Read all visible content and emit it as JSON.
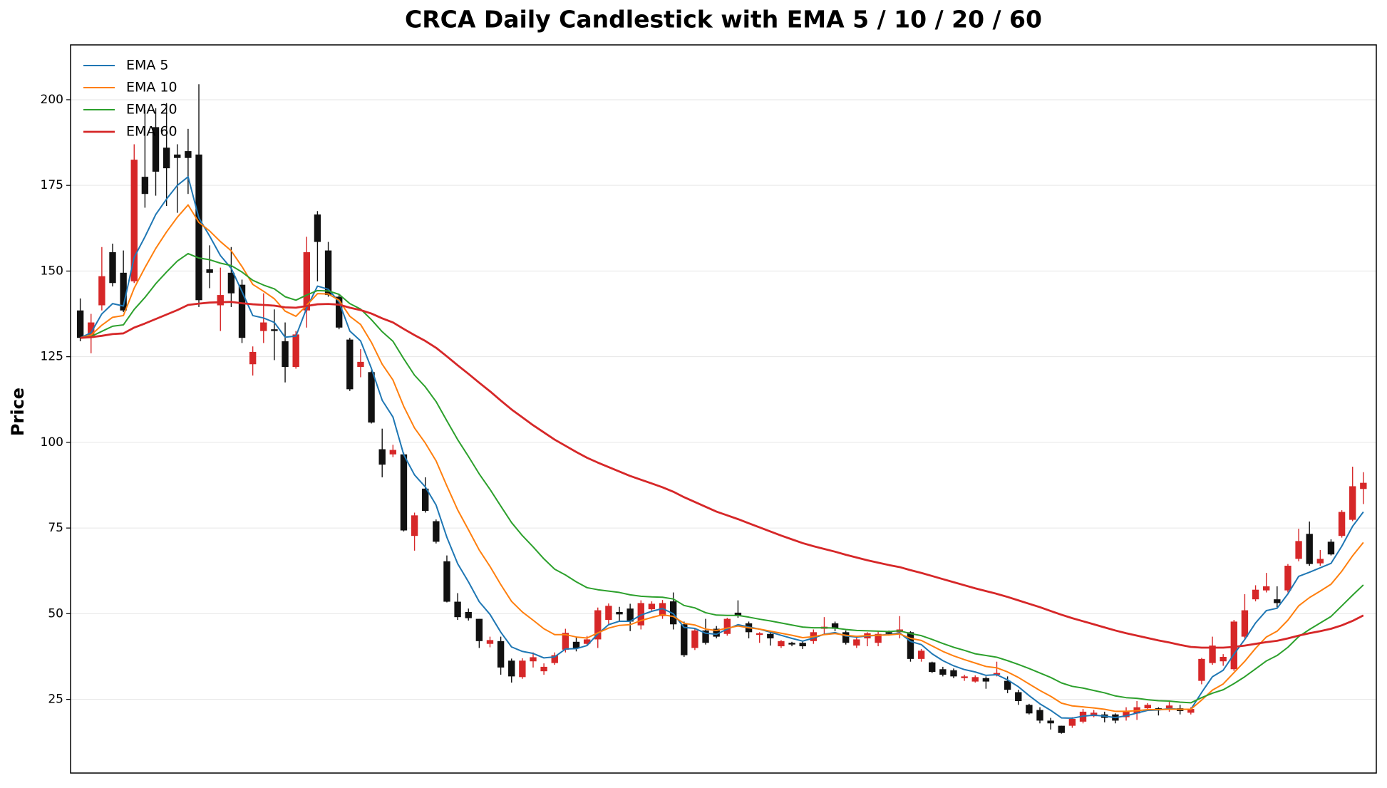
{
  "chart_data": {
    "type": "candlestick",
    "title": "CRCA Daily Candlestick with EMA 5 / 10 / 20 / 60",
    "ylabel": "Price",
    "open": [
      138.5,
      130.5,
      140,
      155.5,
      149.5,
      147,
      177.5,
      192,
      186,
      184,
      185,
      184,
      150.5,
      140,
      149.5,
      146,
      122.8,
      132.5,
      133,
      129.5,
      122,
      138.5,
      166.5,
      156,
      142.5,
      130,
      122,
      120.5,
      98,
      96.5,
      96.5,
      72.7,
      86.5,
      77,
      65.3,
      53.5,
      50.5,
      48.5,
      41.2,
      42,
      36.3,
      31.5,
      36.1,
      33.2,
      35.6,
      39.5,
      41.8,
      41.2,
      42.5,
      48.2,
      50.5,
      51.5,
      46.6,
      51.3,
      49.3,
      53.6,
      46.9,
      40,
      45.1,
      45.6,
      44.1,
      50.3,
      47.2,
      43.8,
      44.1,
      40.5,
      41.5,
      41.5,
      42,
      45.6,
      47.2,
      44.6,
      40.7,
      42.8,
      41.5,
      44.6,
      44.6,
      44.6,
      36.8,
      35.8,
      33.8,
      33.5,
      31.2,
      30.2,
      31.2,
      32.2,
      30.4,
      27.1,
      23.4,
      21.9,
      18.8,
      17.3,
      17.3,
      18.5,
      20.1,
      20.6,
      20.6,
      19.8,
      20.9,
      22.4,
      22.4,
      22.4,
      22.4,
      21.1,
      30.4,
      35.6,
      36.1,
      33.8,
      43.3,
      54.2,
      56.8,
      54.2,
      56.8,
      66,
      73.3,
      64.7,
      71,
      72.7,
      77.4,
      86.4
    ],
    "high": [
      142,
      137.5,
      157,
      158,
      156,
      187,
      197,
      197.5,
      199,
      187,
      191.5,
      204.5,
      157.5,
      151,
      157,
      147.5,
      128,
      143.5,
      138.8,
      135,
      132.5,
      160,
      167.5,
      158.5,
      143,
      130.5,
      127.2,
      121,
      104,
      99.3,
      97,
      79.5,
      89.8,
      77.5,
      67,
      56,
      51.5,
      48.5,
      43.3,
      43.3,
      36.9,
      37,
      38.7,
      35.5,
      38.7,
      45.6,
      43.3,
      43.5,
      51.8,
      53,
      52,
      52.9,
      53.9,
      53.6,
      54,
      56.2,
      47.7,
      45.6,
      48.5,
      46.4,
      48.8,
      53.9,
      47.7,
      44.6,
      45.1,
      42.3,
      41.8,
      42,
      45.4,
      49,
      47.7,
      45.1,
      43.3,
      44.6,
      44.9,
      45.1,
      49.3,
      44.9,
      39.7,
      36,
      34.5,
      34,
      32.2,
      32,
      31.7,
      36,
      31.7,
      27.8,
      23.7,
      22.7,
      19.6,
      17.3,
      19.8,
      22.2,
      21.9,
      21.4,
      20.9,
      22.7,
      24.5,
      23.9,
      22.7,
      24.5,
      23.4,
      22.7,
      37.1,
      43.3,
      38.2,
      48.2,
      55.7,
      58.3,
      61.9,
      58,
      64.5,
      74.8,
      76.9,
      68.6,
      71.7,
      80.2,
      92.9,
      91.3
    ],
    "low": [
      129.5,
      126,
      138.5,
      145.5,
      138,
      146.5,
      168.5,
      172,
      169,
      167,
      172.5,
      139.5,
      145,
      132.5,
      139.5,
      129,
      119.5,
      129,
      124,
      117.5,
      121.5,
      133.5,
      147,
      142.5,
      133,
      115,
      119,
      105.5,
      89.8,
      95.7,
      74,
      68.4,
      79.5,
      70.5,
      53.3,
      48.2,
      48,
      40,
      40.2,
      32.2,
      29.9,
      31,
      34.3,
      32.2,
      35.1,
      38.7,
      39,
      40.7,
      40,
      47,
      48,
      44.9,
      45.4,
      50.5,
      48.5,
      45.4,
      37.4,
      39.4,
      41,
      42.8,
      43.6,
      48.8,
      42.8,
      41.5,
      40.7,
      40,
      40.5,
      39.7,
      41.2,
      43.8,
      44.9,
      41,
      40,
      40.5,
      40.5,
      43.6,
      42.8,
      36,
      36,
      32.7,
      31.7,
      31.2,
      30.4,
      29.9,
      28.1,
      31.7,
      26.8,
      23.4,
      20.6,
      18,
      16.2,
      15,
      16.7,
      18,
      19.8,
      18.3,
      18,
      18.8,
      19,
      22,
      20.3,
      21.4,
      20.6,
      20.6,
      29.4,
      35.1,
      34.8,
      33.3,
      42.8,
      53.6,
      56.2,
      51.8,
      56.2,
      65.3,
      64,
      64,
      67,
      72.2,
      77,
      82
    ],
    "close": [
      130.5,
      135,
      148.5,
      146.5,
      138.5,
      182.5,
      172.5,
      179,
      180,
      183,
      183,
      141.5,
      149.5,
      143,
      143.5,
      130.5,
      126.4,
      135,
      132.5,
      122,
      131.5,
      155.5,
      158.5,
      143,
      133.5,
      115.5,
      123.5,
      105.8,
      93.5,
      97.8,
      74.3,
      78.7,
      80,
      71,
      53.5,
      49,
      48.7,
      42,
      42.3,
      34.3,
      31.7,
      36.3,
      37.3,
      34.5,
      37.9,
      44.4,
      40,
      42.5,
      51,
      52.3,
      49.8,
      47.7,
      53.1,
      52.9,
      53.1,
      46.9,
      37.9,
      45.1,
      41.5,
      43.3,
      48.5,
      49.3,
      44.6,
      44.3,
      42.8,
      42,
      41,
      40.5,
      44.6,
      46.2,
      45.6,
      41.5,
      42.5,
      44.3,
      44.1,
      44.1,
      45.4,
      36.8,
      39.2,
      33,
      32.2,
      31.7,
      31.7,
      31.5,
      30.2,
      32.7,
      27.8,
      24.5,
      20.9,
      18.8,
      18,
      15.2,
      19.3,
      21.4,
      21.1,
      19.6,
      18.8,
      21.4,
      22.7,
      23.4,
      22,
      23.2,
      21.6,
      22.2,
      36.8,
      40.7,
      37.4,
      47.7,
      51,
      57,
      58,
      53.1,
      64,
      71.2,
      64.5,
      66,
      67.3,
      79.7,
      87.2,
      88.2
    ],
    "up_color": "#d62728",
    "down_color": "#111111",
    "series": [
      {
        "name": "EMA 5",
        "color": "#1f77b4",
        "values": [
          130.5,
          132,
          137.5,
          140.5,
          139.8,
          154,
          160,
          166.5,
          171,
          175,
          177.5,
          165.5,
          160.2,
          154.5,
          150.8,
          144,
          137,
          136.3,
          135,
          130.7,
          131,
          139.2,
          145.6,
          144.7,
          141,
          132.5,
          129.6,
          121.6,
          112.3,
          107.4,
          96.4,
          90.5,
          87,
          81.7,
          72.3,
          64.6,
          59.3,
          53.5,
          49.8,
          44.6,
          40.3,
          39,
          38.4,
          37.1,
          37.4,
          39.7,
          39.8,
          40.7,
          44.1,
          46.8,
          47.8,
          47.8,
          49.6,
          50.7,
          51.5,
          50,
          46,
          45.7,
          44.3,
          44,
          45.5,
          46.8,
          46.1,
          45.5,
          44.6,
          43.7,
          42.8,
          42,
          42.9,
          44,
          44.5,
          43.5,
          43.2,
          43.5,
          43.7,
          43.9,
          44.4,
          41.9,
          41,
          38.3,
          36.3,
          34.8,
          33.7,
          33,
          32,
          32.2,
          30.7,
          28.7,
          26.1,
          23.7,
          21.8,
          19.6,
          19.5,
          20.1,
          20.4,
          20.1,
          19.7,
          20.2,
          21,
          21.8,
          21.9,
          22.3,
          22.1,
          22.1,
          27,
          31.6,
          33.5,
          38.2,
          42.5,
          47.3,
          50.9,
          51.6,
          55.8,
          60.9,
          62.1,
          63.4,
          64.7,
          69.7,
          75.5,
          79.7
        ]
      },
      {
        "name": "EMA 10",
        "color": "#ff7f0e",
        "values": [
          130.5,
          131.3,
          134.2,
          136.5,
          137,
          145,
          151,
          156.6,
          161.4,
          165.7,
          169.3,
          164.2,
          161.7,
          158.6,
          155.9,
          151.3,
          146.1,
          144.1,
          141.9,
          138.3,
          136.8,
          140,
          143.4,
          143.3,
          141.5,
          136.8,
          134.4,
          129.2,
          122.8,
          118.2,
          110.5,
          104.2,
          99.8,
          94.6,
          87.3,
          80.3,
          74.5,
          68.6,
          63.8,
          58.5,
          53.6,
          50.5,
          48.1,
          45.6,
          43.9,
          43.9,
          43.2,
          42.9,
          44.4,
          45.8,
          46.6,
          46.8,
          48,
          48.9,
          49.7,
          49.2,
          47.2,
          46.7,
          45.5,
          45.1,
          45.8,
          46.4,
          45.9,
          45.5,
          44.9,
          44.3,
          43.7,
          43,
          43.3,
          43.9,
          44.2,
          43.7,
          43.4,
          43.6,
          43.7,
          43.8,
          44.1,
          42.8,
          42.2,
          40.6,
          39,
          37.7,
          36.6,
          35.6,
          34.6,
          34.2,
          33,
          31.4,
          29.5,
          27.6,
          25.9,
          23.9,
          23.1,
          22.8,
          22.5,
          22.1,
          21.5,
          21.5,
          21.7,
          22,
          22,
          22.1,
          22.1,
          22.1,
          24.8,
          27.7,
          29.5,
          32.8,
          36.1,
          39.9,
          43.2,
          44.9,
          48.1,
          52.3,
          54.7,
          56.6,
          58.6,
          62.4,
          66.9,
          70.8
        ]
      },
      {
        "name": "EMA 20",
        "color": "#2ca02c",
        "values": [
          130.5,
          130.9,
          132.4,
          133.9,
          134.3,
          138.8,
          142.3,
          146.3,
          149.7,
          152.9,
          155.1,
          153.8,
          153.3,
          152.3,
          151.6,
          149.7,
          147.3,
          145.9,
          144.8,
          142.5,
          141.5,
          143,
          144.3,
          144.2,
          143.2,
          140.5,
          138.9,
          135.8,
          132.3,
          129.5,
          124.4,
          119.6,
          116.2,
          111.9,
          106.3,
          100.8,
          95.9,
          90.8,
          86.3,
          81.4,
          76.6,
          72.8,
          69.5,
          66,
          63,
          61.3,
          59.3,
          57.6,
          57,
          56.6,
          56.2,
          55.5,
          55.1,
          54.9,
          54.8,
          54.3,
          52.4,
          51.7,
          50.3,
          49.6,
          49.5,
          49.5,
          49,
          48.4,
          47.9,
          47.3,
          46.7,
          46.1,
          45.9,
          45.9,
          45.8,
          45.4,
          45.1,
          45,
          44.9,
          44.8,
          45,
          44.2,
          43.6,
          42.5,
          41.3,
          40.2,
          39.3,
          38.3,
          37.8,
          37.3,
          36.3,
          35.2,
          34,
          32.7,
          31.4,
          29.8,
          28.8,
          28.3,
          27.6,
          26.9,
          26,
          25.5,
          25.3,
          24.9,
          24.6,
          24.5,
          24.2,
          24,
          25.5,
          26.8,
          27.8,
          29.6,
          31.6,
          33.9,
          36.2,
          37.8,
          40.2,
          43.3,
          45.4,
          47.3,
          49.2,
          52.3,
          55.4,
          58.4
        ]
      },
      {
        "name": "EMA 60",
        "color": "#d62728",
        "values": [
          130.5,
          130.7,
          131.1,
          131.6,
          131.8,
          133.5,
          134.7,
          136,
          137.3,
          138.6,
          140.1,
          140.5,
          140.8,
          140.9,
          141,
          140.6,
          140.3,
          140.1,
          139.9,
          139.4,
          139.3,
          139.8,
          140.3,
          140.4,
          140.2,
          139.3,
          138.6,
          137.6,
          136.2,
          135,
          133.1,
          131.3,
          129.6,
          127.6,
          125.1,
          122.5,
          120,
          117.4,
          114.9,
          112.2,
          109.6,
          107.3,
          105,
          102.9,
          100.8,
          99,
          97.2,
          95.5,
          94.1,
          92.8,
          91.5,
          90.2,
          89.1,
          88,
          86.9,
          85.6,
          84,
          82.6,
          81.2,
          79.8,
          78.7,
          77.6,
          76.4,
          75.2,
          74,
          72.8,
          71.7,
          70.6,
          69.7,
          68.9,
          68.1,
          67.2,
          66.4,
          65.6,
          64.9,
          64.2,
          63.6,
          62.7,
          61.9,
          61,
          60.1,
          59.2,
          58.3,
          57.4,
          56.6,
          55.8,
          54.9,
          53.9,
          52.9,
          51.9,
          50.8,
          49.7,
          48.7,
          47.8,
          46.9,
          46,
          45.1,
          44.3,
          43.6,
          42.9,
          42.2,
          41.6,
          40.9,
          40.3,
          40.1,
          40.1,
          40.1,
          40.3,
          40.7,
          41.2,
          41.7,
          42.1,
          42.8,
          43.6,
          44.3,
          44.9,
          45.6,
          46.6,
          47.9,
          49.5
        ]
      }
    ],
    "ylim": [
      3.5,
      216
    ],
    "yticks": [
      25,
      50,
      75,
      100,
      125,
      150,
      175,
      200
    ],
    "grid": true,
    "legend": "upper left"
  }
}
